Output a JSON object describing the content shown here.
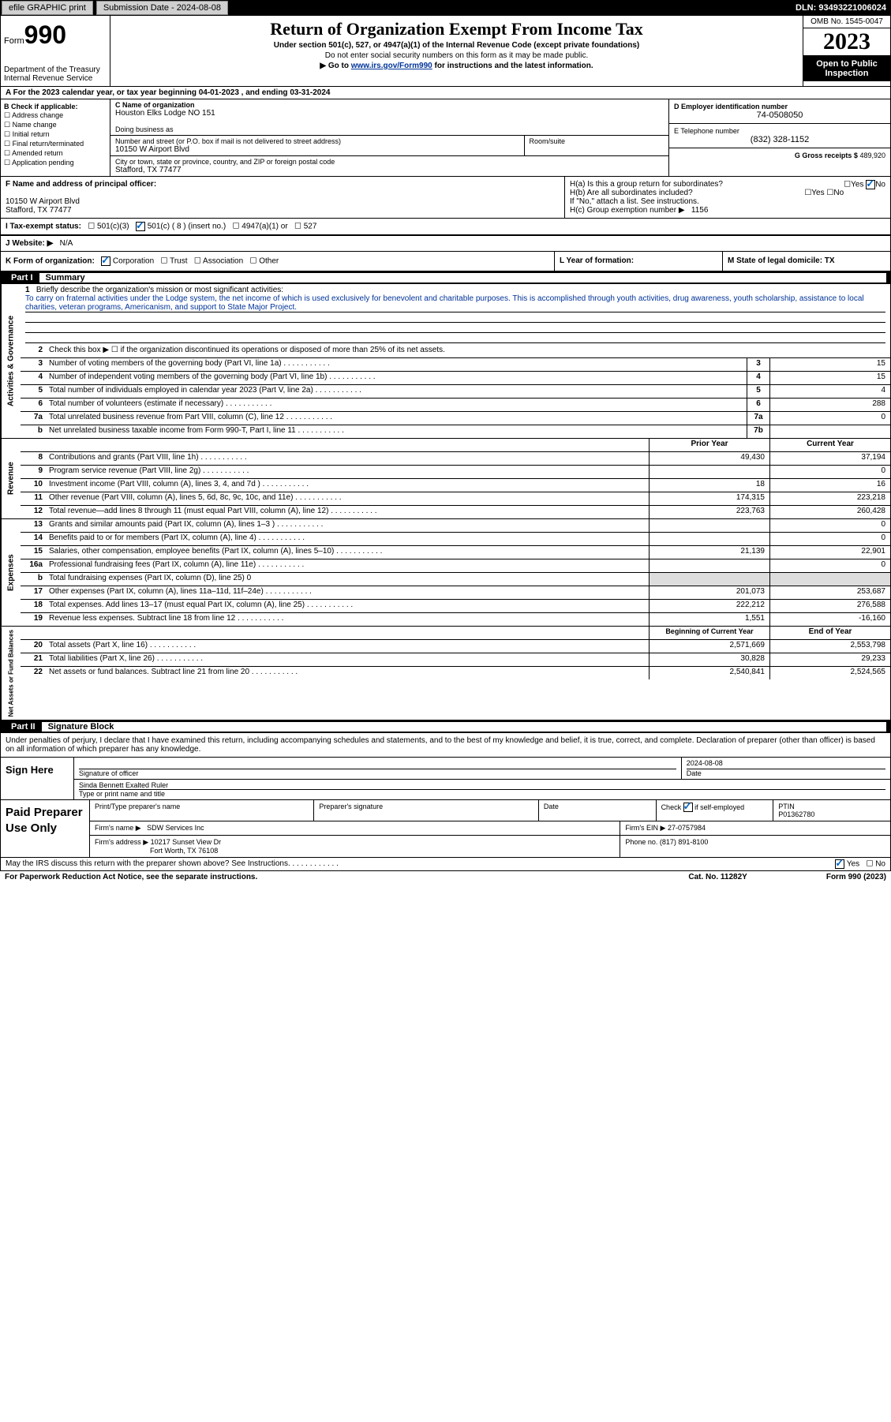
{
  "topbar": {
    "efile_label": "efile GRAPHIC print",
    "submission": "Submission Date - 2024-08-08",
    "dln": "DLN: 93493221006024"
  },
  "header": {
    "form_prefix": "Form",
    "form_number": "990",
    "title": "Return of Organization Exempt From Income Tax",
    "subtitle": "Under section 501(c), 527, or 4947(a)(1) of the Internal Revenue Code (except private foundations)",
    "ssn_note": "Do not enter social security numbers on this form as it may be made public.",
    "goto": "Go to ",
    "goto_link": "www.irs.gov/Form990",
    "goto_suffix": " for instructions and the latest information.",
    "dept": "Department of the Treasury\nInternal Revenue Service",
    "omb": "OMB No. 1545-0047",
    "year": "2023",
    "inspect": "Open to Public Inspection"
  },
  "line_a": "A For the 2023 calendar year, or tax year beginning 04-01-2023    , and ending 03-31-2024",
  "section_b": {
    "label": "B Check if applicable:",
    "opts": [
      "Address change",
      "Name change",
      "Initial return",
      "Final return/terminated",
      "Amended return",
      "Application pending"
    ]
  },
  "section_c": {
    "name_label": "C Name of organization",
    "name": "Houston Elks Lodge NO 151",
    "dba_label": "Doing business as",
    "dba": "",
    "addr_label": "Number and street (or P.O. box if mail is not delivered to street address)",
    "room_label": "Room/suite",
    "addr": "10150 W Airport Blvd",
    "city_label": "City or town, state or province, country, and ZIP or foreign postal code",
    "city": "Stafford, TX  77477"
  },
  "section_d": {
    "ein_label": "D Employer identification number",
    "ein": "74-0508050",
    "tel_label": "E Telephone number",
    "tel": "(832) 328-1152",
    "gross_label": "G Gross receipts $",
    "gross": "489,920"
  },
  "section_f": {
    "label": "F Name and address of principal officer:",
    "addr1": "10150 W Airport Blvd",
    "addr2": "Stafford, TX  77477"
  },
  "section_h": {
    "ha": "H(a)  Is this a group return for subordinates?",
    "hb": "H(b)  Are all subordinates included?",
    "hb_note": "If \"No,\" attach a list. See instructions.",
    "hc": "H(c)  Group exemption number ▶",
    "hc_val": "1156"
  },
  "section_i": {
    "label": "I  Tax-exempt status:",
    "opt1": "501(c)(3)",
    "opt2": "501(c) ( 8 ) (insert no.)",
    "opt3": "4947(a)(1) or",
    "opt4": "527"
  },
  "section_j": {
    "label": "J  Website: ▶",
    "val": "N/A"
  },
  "section_k": {
    "label": "K Form of organization:",
    "opts": [
      "Corporation",
      "Trust",
      "Association",
      "Other"
    ]
  },
  "section_l": "L Year of formation:",
  "section_m": "M State of legal domicile: TX",
  "part1": {
    "num": "Part I",
    "title": "Summary"
  },
  "mission": {
    "label": "Briefly describe the organization's mission or most significant activities:",
    "text": "To carry on fraternal activities under the Lodge system, the net income of which is used exclusively for benevolent and charitable purposes. This is accomplished through youth activities, drug awareness, youth scholarship, assistance to local charities, veteran programs, Americanism, and support to State Major Project."
  },
  "gov_rows": [
    {
      "n": "2",
      "d": "Check this box ▶ ☐  if the organization discontinued its operations or disposed of more than 25% of its net assets."
    },
    {
      "n": "3",
      "d": "Number of voting members of the governing body (Part VI, line 1a)",
      "box": "3",
      "v": "15"
    },
    {
      "n": "4",
      "d": "Number of independent voting members of the governing body (Part VI, line 1b)",
      "box": "4",
      "v": "15"
    },
    {
      "n": "5",
      "d": "Total number of individuals employed in calendar year 2023 (Part V, line 2a)",
      "box": "5",
      "v": "4"
    },
    {
      "n": "6",
      "d": "Total number of volunteers (estimate if necessary)",
      "box": "6",
      "v": "288"
    },
    {
      "n": "7a",
      "d": "Total unrelated business revenue from Part VIII, column (C), line 12",
      "box": "7a",
      "v": "0"
    },
    {
      "n": "b",
      "d": "Net unrelated business taxable income from Form 990-T, Part I, line 11",
      "box": "7b",
      "v": ""
    }
  ],
  "rev_header": {
    "prior": "Prior Year",
    "current": "Current Year"
  },
  "rev_rows": [
    {
      "n": "8",
      "d": "Contributions and grants (Part VIII, line 1h)",
      "p": "49,430",
      "c": "37,194"
    },
    {
      "n": "9",
      "d": "Program service revenue (Part VIII, line 2g)",
      "p": "",
      "c": "0"
    },
    {
      "n": "10",
      "d": "Investment income (Part VIII, column (A), lines 3, 4, and 7d )",
      "p": "18",
      "c": "16"
    },
    {
      "n": "11",
      "d": "Other revenue (Part VIII, column (A), lines 5, 6d, 8c, 9c, 10c, and 11e)",
      "p": "174,315",
      "c": "223,218"
    },
    {
      "n": "12",
      "d": "Total revenue—add lines 8 through 11 (must equal Part VIII, column (A), line 12)",
      "p": "223,763",
      "c": "260,428"
    }
  ],
  "exp_rows": [
    {
      "n": "13",
      "d": "Grants and similar amounts paid (Part IX, column (A), lines 1–3 )",
      "p": "",
      "c": "0"
    },
    {
      "n": "14",
      "d": "Benefits paid to or for members (Part IX, column (A), line 4)",
      "p": "",
      "c": "0"
    },
    {
      "n": "15",
      "d": "Salaries, other compensation, employee benefits (Part IX, column (A), lines 5–10)",
      "p": "21,139",
      "c": "22,901"
    },
    {
      "n": "16a",
      "d": "Professional fundraising fees (Part IX, column (A), line 11e)",
      "p": "",
      "c": "0"
    },
    {
      "n": "b",
      "d": "Total fundraising expenses (Part IX, column (D), line 25) 0",
      "p": "gray",
      "c": "gray"
    },
    {
      "n": "17",
      "d": "Other expenses (Part IX, column (A), lines 11a–11d, 11f–24e)",
      "p": "201,073",
      "c": "253,687"
    },
    {
      "n": "18",
      "d": "Total expenses. Add lines 13–17 (must equal Part IX, column (A), line 25)",
      "p": "222,212",
      "c": "276,588"
    },
    {
      "n": "19",
      "d": "Revenue less expenses. Subtract line 18 from line 12",
      "p": "1,551",
      "c": "-16,160"
    }
  ],
  "net_header": {
    "prior": "Beginning of Current Year",
    "current": "End of Year"
  },
  "net_rows": [
    {
      "n": "20",
      "d": "Total assets (Part X, line 16)",
      "p": "2,571,669",
      "c": "2,553,798"
    },
    {
      "n": "21",
      "d": "Total liabilities (Part X, line 26)",
      "p": "30,828",
      "c": "29,233"
    },
    {
      "n": "22",
      "d": "Net assets or fund balances. Subtract line 21 from line 20",
      "p": "2,540,841",
      "c": "2,524,565"
    }
  ],
  "part2": {
    "num": "Part II",
    "title": "Signature Block"
  },
  "perjury": "Under penalties of perjury, I declare that I have examined this return, including accompanying schedules and statements, and to the best of my knowledge and belief, it is true, correct, and complete. Declaration of preparer (other than officer) is based on all information of which preparer has any knowledge.",
  "sign": {
    "label": "Sign Here",
    "sig_label": "Signature of officer",
    "date_label": "Date",
    "date": "2024-08-08",
    "name": "Sinda Bennett Exalted Ruler",
    "type_label": "Type or print name and title"
  },
  "paid": {
    "label": "Paid Preparer Use Only",
    "prep_name_label": "Print/Type preparer's name",
    "prep_sig_label": "Preparer's signature",
    "date_label": "Date",
    "check_label": "Check ☑ if self-employed",
    "ptin_label": "PTIN",
    "ptin": "P01362780",
    "firm_name_label": "Firm's name  ▶",
    "firm_name": "SDW Services Inc",
    "firm_ein_label": "Firm's EIN ▶",
    "firm_ein": "27-0757984",
    "firm_addr_label": "Firm's address ▶",
    "firm_addr1": "10217 Sunset View Dr",
    "firm_addr2": "Fort Worth, TX  76108",
    "phone_label": "Phone no.",
    "phone": "(817) 891-8100"
  },
  "discuss": "May the IRS discuss this return with the preparer shown above? See Instructions.",
  "footer": {
    "paperwork": "For Paperwork Reduction Act Notice, see the separate instructions.",
    "cat": "Cat. No. 11282Y",
    "form": "Form 990 (2023)"
  },
  "vtabs": {
    "gov": "Activities & Governance",
    "rev": "Revenue",
    "exp": "Expenses",
    "net": "Net Assets or Fund Balances"
  }
}
